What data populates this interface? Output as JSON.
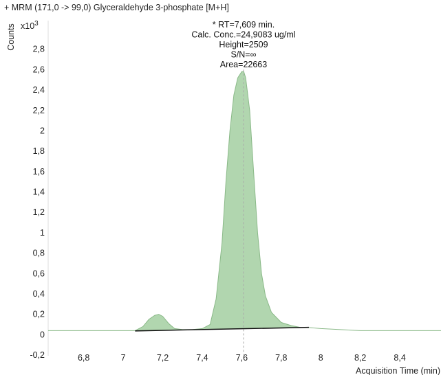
{
  "chart_data": {
    "type": "area",
    "title": "+ MRM (171,0 -> 99,0) Glyceraldehyde 3-phosphate  [M+H]",
    "ylabel": "Counts",
    "yscale_label": "x10",
    "yscale_exp": "3",
    "xlabel": "Acquisition Time (min)",
    "xlim": [
      6.62,
      8.64
    ],
    "ylim": [
      -0.2,
      3.0
    ],
    "xticks": [
      "6,8",
      "7",
      "7,2",
      "7,4",
      "7,6",
      "7,8",
      "8",
      "8,2",
      "8,4"
    ],
    "yticks": [
      "-0,2",
      "0",
      "0,2",
      "0,4",
      "0,6",
      "0,8",
      "1",
      "1,2",
      "1,4",
      "1,6",
      "1,8",
      "2",
      "2,2",
      "2,4",
      "2,6",
      "2,8"
    ],
    "annotations": [
      "* RT=7,609 min.",
      "Calc. Conc.=24,9083 ug/ml",
      "Height=2509",
      "S/N=∞",
      "Area=22663"
    ],
    "peak_rt": 7.609,
    "baseline": {
      "x": [
        7.06,
        7.94
      ],
      "y": [
        0.037,
        0.072
      ]
    },
    "series": [
      {
        "x": [
          6.62,
          7.0,
          7.06,
          7.1,
          7.13,
          7.16,
          7.18,
          7.2,
          7.23,
          7.26,
          7.3,
          7.35,
          7.4,
          7.44,
          7.47,
          7.5,
          7.52,
          7.54,
          7.56,
          7.58,
          7.6,
          7.61,
          7.62,
          7.64,
          7.66,
          7.68,
          7.7,
          7.72,
          7.75,
          7.8,
          7.85,
          7.9,
          7.94,
          8.0,
          8.2,
          8.4,
          8.64
        ],
        "y": [
          0.04,
          0.04,
          0.04,
          0.08,
          0.15,
          0.19,
          0.2,
          0.18,
          0.11,
          0.06,
          0.05,
          0.05,
          0.06,
          0.1,
          0.35,
          0.9,
          1.5,
          2.0,
          2.35,
          2.52,
          2.58,
          2.58,
          2.52,
          2.2,
          1.6,
          1.0,
          0.6,
          0.38,
          0.22,
          0.12,
          0.09,
          0.07,
          0.07,
          0.06,
          0.04,
          0.04,
          0.04
        ]
      }
    ],
    "colors": {
      "fill": "#a9d1a6",
      "line": "#8ab988",
      "baseline": "#111111",
      "peak_marker": "#aaaaaa"
    }
  }
}
